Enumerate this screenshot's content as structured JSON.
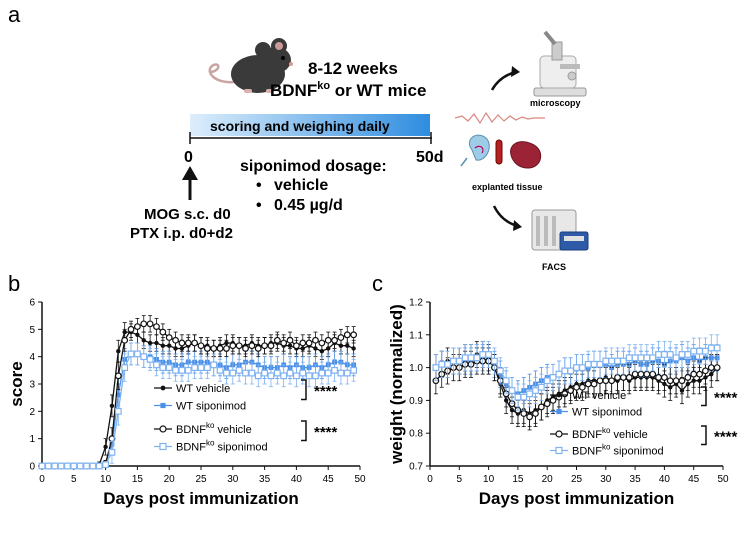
{
  "panel_labels": {
    "a": "a",
    "b": "b",
    "c": "c"
  },
  "schematic": {
    "age_line1": "8-12 weeks",
    "age_line2_prefix": "BDNF",
    "age_line2_sup": "ko",
    "age_line2_suffix": " or WT mice",
    "bar_label": "scoring and weighing daily",
    "start_label": "0",
    "end_label": "50d",
    "dosage_title": "siponimod dosage:",
    "dosage_items": [
      "vehicle",
      "0.45 µg/d"
    ],
    "induction_line1": "MOG s.c. d0",
    "induction_line2": "PTX i.p. d0+d2",
    "out_microscopy": "microscopy",
    "out_tissue": "explanted tissue",
    "out_facs": "FACS"
  },
  "colors": {
    "wt_vehicle": "#111111",
    "wt_siponimod": "#4a90e8",
    "ko_vehicle": "#111111",
    "ko_siponimod": "#7fb2f0",
    "bar_start": "#ddeefc",
    "bar_end": "#2f8ddf",
    "mouse": "#3a3a3a"
  },
  "chart_data": [
    {
      "type": "line",
      "id": "score",
      "xlabel": "Days post immunization",
      "ylabel": "score",
      "xlim": [
        0,
        50
      ],
      "ylim": [
        0,
        6
      ],
      "xticks": [
        0,
        5,
        10,
        15,
        20,
        25,
        30,
        35,
        40,
        45,
        50
      ],
      "yticks": [
        0,
        1,
        2,
        3,
        4,
        5,
        6
      ],
      "significance": [
        "****",
        "****"
      ],
      "legend": [
        {
          "prefix": "WT vehicle",
          "sup": "",
          "suffix": ""
        },
        {
          "prefix": "WT siponimod",
          "sup": "",
          "suffix": ""
        },
        {
          "prefix": "BDNF",
          "sup": "ko",
          "suffix": " vehicle"
        },
        {
          "prefix": "BDNF",
          "sup": "ko",
          "suffix": " siponimod"
        }
      ],
      "x": [
        0,
        1,
        2,
        3,
        4,
        5,
        6,
        7,
        8,
        9,
        10,
        11,
        12,
        13,
        14,
        15,
        16,
        17,
        18,
        19,
        20,
        21,
        22,
        23,
        24,
        25,
        26,
        27,
        28,
        29,
        30,
        31,
        32,
        33,
        34,
        35,
        36,
        37,
        38,
        39,
        40,
        41,
        42,
        43,
        44,
        45,
        46,
        47,
        48,
        49
      ],
      "series": [
        {
          "name": "WT vehicle",
          "color": "#111111",
          "marker": "dot",
          "values": [
            0,
            0,
            0,
            0,
            0,
            0,
            0,
            0,
            0,
            0.05,
            0.7,
            2.2,
            4.2,
            4.9,
            4.9,
            4.8,
            4.6,
            4.5,
            4.5,
            4.4,
            4.4,
            4.3,
            4.3,
            4.4,
            4.5,
            4.4,
            4.4,
            4.3,
            4.4,
            4.5,
            4.5,
            4.4,
            4.4,
            4.5,
            4.4,
            4.4,
            4.5,
            4.5,
            4.4,
            4.4,
            4.3,
            4.3,
            4.4,
            4.3,
            4.2,
            4.3,
            4.5,
            4.4,
            4.4,
            4.3
          ],
          "err": [
            0,
            0,
            0,
            0,
            0,
            0,
            0,
            0,
            0,
            0.1,
            0.3,
            0.4,
            0.4,
            0.35,
            0.3,
            0.3,
            0.3,
            0.3,
            0.3,
            0.3,
            0.3,
            0.3,
            0.3,
            0.3,
            0.3,
            0.3,
            0.3,
            0.3,
            0.3,
            0.3,
            0.3,
            0.3,
            0.3,
            0.3,
            0.3,
            0.3,
            0.3,
            0.3,
            0.3,
            0.3,
            0.3,
            0.3,
            0.3,
            0.3,
            0.3,
            0.3,
            0.3,
            0.3,
            0.3,
            0.3
          ]
        },
        {
          "name": "WT siponimod",
          "color": "#4a90e8",
          "marker": "square",
          "values": [
            0,
            0,
            0,
            0,
            0,
            0,
            0,
            0,
            0,
            0,
            0.1,
            0.8,
            2.6,
            3.9,
            4.1,
            4.1,
            4.0,
            4.0,
            3.9,
            3.8,
            3.8,
            3.7,
            3.7,
            3.8,
            3.8,
            3.8,
            3.8,
            3.7,
            3.7,
            3.6,
            3.7,
            3.7,
            3.8,
            3.8,
            3.7,
            3.6,
            3.6,
            3.6,
            3.7,
            3.6,
            3.7,
            3.6,
            3.6,
            3.7,
            3.6,
            3.7,
            3.8,
            3.8,
            3.7,
            3.7
          ],
          "err": [
            0,
            0,
            0,
            0,
            0,
            0,
            0,
            0,
            0,
            0,
            0.1,
            0.3,
            0.4,
            0.4,
            0.4,
            0.4,
            0.4,
            0.4,
            0.4,
            0.4,
            0.4,
            0.4,
            0.4,
            0.4,
            0.4,
            0.4,
            0.4,
            0.4,
            0.4,
            0.4,
            0.4,
            0.4,
            0.4,
            0.4,
            0.4,
            0.4,
            0.4,
            0.4,
            0.4,
            0.4,
            0.4,
            0.4,
            0.4,
            0.4,
            0.4,
            0.4,
            0.4,
            0.4,
            0.4,
            0.4
          ]
        },
        {
          "name": "BDNFko vehicle",
          "color": "#111111",
          "marker": "circle",
          "values": [
            0,
            0,
            0,
            0,
            0,
            0,
            0,
            0,
            0,
            0,
            0.1,
            1.0,
            3.3,
            4.6,
            5.0,
            5.1,
            5.2,
            5.2,
            5.1,
            4.9,
            4.7,
            4.6,
            4.5,
            4.5,
            4.5,
            4.4,
            4.3,
            4.3,
            4.3,
            4.3,
            4.4,
            4.4,
            4.3,
            4.4,
            4.3,
            4.4,
            4.4,
            4.6,
            4.5,
            4.6,
            4.4,
            4.5,
            4.5,
            4.6,
            4.5,
            4.6,
            4.6,
            4.7,
            4.8,
            4.8
          ],
          "err": [
            0,
            0,
            0,
            0,
            0,
            0,
            0,
            0,
            0,
            0,
            0.1,
            0.4,
            0.5,
            0.4,
            0.3,
            0.3,
            0.3,
            0.3,
            0.3,
            0.3,
            0.3,
            0.3,
            0.3,
            0.3,
            0.3,
            0.3,
            0.3,
            0.3,
            0.3,
            0.3,
            0.3,
            0.3,
            0.3,
            0.3,
            0.3,
            0.3,
            0.3,
            0.3,
            0.3,
            0.3,
            0.3,
            0.3,
            0.3,
            0.3,
            0.3,
            0.3,
            0.3,
            0.3,
            0.3,
            0.3
          ]
        },
        {
          "name": "BDNFko siponimod",
          "color": "#7fb2f0",
          "marker": "opensquare",
          "values": [
            0,
            0,
            0,
            0,
            0,
            0,
            0,
            0,
            0,
            0,
            0.05,
            0.5,
            2.0,
            3.6,
            4.1,
            4.1,
            4.0,
            3.9,
            3.7,
            3.6,
            3.6,
            3.5,
            3.5,
            3.5,
            3.6,
            3.6,
            3.6,
            3.7,
            3.5,
            3.4,
            3.4,
            3.5,
            3.4,
            3.4,
            3.3,
            3.4,
            3.3,
            3.4,
            3.3,
            3.4,
            3.3,
            3.4,
            3.3,
            3.3,
            3.4,
            3.4,
            3.5,
            3.4,
            3.4,
            3.5
          ],
          "err": [
            0,
            0,
            0,
            0,
            0,
            0,
            0,
            0,
            0,
            0,
            0.1,
            0.4,
            0.5,
            0.5,
            0.4,
            0.4,
            0.4,
            0.4,
            0.4,
            0.4,
            0.4,
            0.4,
            0.4,
            0.4,
            0.4,
            0.4,
            0.4,
            0.4,
            0.4,
            0.4,
            0.4,
            0.4,
            0.4,
            0.4,
            0.4,
            0.4,
            0.4,
            0.4,
            0.4,
            0.4,
            0.4,
            0.4,
            0.4,
            0.4,
            0.4,
            0.4,
            0.4,
            0.4,
            0.4,
            0.4
          ]
        }
      ]
    },
    {
      "type": "line",
      "id": "weight",
      "xlabel": "Days post immunization",
      "ylabel": "weight (normalized)",
      "xlim": [
        0,
        50
      ],
      "ylim": [
        0.7,
        1.2
      ],
      "xticks": [
        0,
        5,
        10,
        15,
        20,
        25,
        30,
        35,
        40,
        45,
        50
      ],
      "yticks": [
        "0.7",
        "0.8",
        "0.9",
        "1.0",
        "1.1",
        "1.2"
      ],
      "significance": [
        "****",
        "****"
      ],
      "legend": [
        {
          "prefix": "WT vehicle",
          "sup": "",
          "suffix": ""
        },
        {
          "prefix": "WT siponimod",
          "sup": "",
          "suffix": ""
        },
        {
          "prefix": "BDNF",
          "sup": "ko",
          "suffix": " vehicle"
        },
        {
          "prefix": "BDNF",
          "sup": "ko",
          "suffix": " siponimod"
        }
      ],
      "x": [
        1,
        2,
        3,
        4,
        5,
        6,
        7,
        8,
        9,
        10,
        11,
        12,
        13,
        14,
        15,
        16,
        17,
        18,
        19,
        20,
        21,
        22,
        23,
        24,
        25,
        26,
        27,
        28,
        29,
        30,
        31,
        32,
        33,
        34,
        35,
        36,
        37,
        38,
        39,
        40,
        41,
        42,
        43,
        44,
        45,
        46,
        47,
        48,
        49
      ],
      "series": [
        {
          "name": "WT vehicle",
          "color": "#111111",
          "marker": "dot",
          "values": [
            1.0,
            1.01,
            1.02,
            1.02,
            1.02,
            1.03,
            1.03,
            1.04,
            1.04,
            1.03,
            1.0,
            0.95,
            0.9,
            0.87,
            0.86,
            0.87,
            0.86,
            0.87,
            0.88,
            0.9,
            0.91,
            0.92,
            0.93,
            0.94,
            0.95,
            0.95,
            0.96,
            0.96,
            0.96,
            0.97,
            0.96,
            0.96,
            0.97,
            0.96,
            0.97,
            0.97,
            0.97,
            0.97,
            0.96,
            0.95,
            0.94,
            0.95,
            0.93,
            0.95,
            0.96,
            0.96,
            0.97,
            0.98,
            1.0
          ],
          "err": [
            0.04,
            0.04,
            0.04,
            0.04,
            0.04,
            0.04,
            0.04,
            0.04,
            0.04,
            0.04,
            0.04,
            0.04,
            0.04,
            0.04,
            0.04,
            0.04,
            0.04,
            0.04,
            0.04,
            0.04,
            0.04,
            0.04,
            0.04,
            0.04,
            0.04,
            0.04,
            0.04,
            0.04,
            0.04,
            0.04,
            0.04,
            0.04,
            0.04,
            0.04,
            0.04,
            0.04,
            0.04,
            0.04,
            0.04,
            0.04,
            0.04,
            0.04,
            0.04,
            0.04,
            0.04,
            0.04,
            0.04,
            0.04,
            0.04
          ]
        },
        {
          "name": "WT siponimod",
          "color": "#4a90e8",
          "marker": "square",
          "values": [
            1.0,
            1.01,
            1.01,
            1.02,
            1.02,
            1.02,
            1.02,
            1.03,
            1.03,
            1.02,
            1.01,
            0.98,
            0.95,
            0.93,
            0.92,
            0.93,
            0.94,
            0.95,
            0.96,
            0.97,
            0.97,
            0.98,
            0.99,
            0.99,
            1.0,
            1.0,
            1.0,
            1.01,
            1.01,
            1.01,
            1.0,
            1.01,
            1.01,
            1.01,
            1.02,
            1.01,
            1.01,
            1.02,
            1.02,
            1.01,
            1.02,
            1.02,
            1.03,
            1.02,
            1.03,
            1.02,
            1.03,
            1.03,
            1.03
          ],
          "err": [
            0.04,
            0.04,
            0.04,
            0.04,
            0.04,
            0.04,
            0.04,
            0.04,
            0.04,
            0.04,
            0.04,
            0.04,
            0.04,
            0.04,
            0.04,
            0.04,
            0.04,
            0.04,
            0.04,
            0.04,
            0.04,
            0.04,
            0.04,
            0.04,
            0.04,
            0.04,
            0.04,
            0.04,
            0.04,
            0.04,
            0.04,
            0.04,
            0.04,
            0.04,
            0.04,
            0.04,
            0.04,
            0.04,
            0.04,
            0.04,
            0.04,
            0.04,
            0.04,
            0.04,
            0.04,
            0.04,
            0.04,
            0.04,
            0.04
          ]
        },
        {
          "name": "BDNFko vehicle",
          "color": "#111111",
          "marker": "circle",
          "values": [
            0.96,
            0.98,
            0.99,
            1.0,
            1.0,
            1.01,
            1.01,
            1.02,
            1.02,
            1.02,
            1.0,
            0.96,
            0.92,
            0.89,
            0.87,
            0.86,
            0.85,
            0.86,
            0.88,
            0.89,
            0.9,
            0.91,
            0.92,
            0.93,
            0.94,
            0.94,
            0.95,
            0.95,
            0.96,
            0.96,
            0.96,
            0.97,
            0.97,
            0.97,
            0.98,
            0.98,
            0.98,
            0.98,
            0.97,
            0.97,
            0.96,
            0.96,
            0.96,
            0.97,
            0.98,
            0.98,
            0.99,
            1.0,
            1.0
          ],
          "err": [
            0.04,
            0.04,
            0.04,
            0.04,
            0.04,
            0.04,
            0.04,
            0.04,
            0.04,
            0.04,
            0.04,
            0.04,
            0.04,
            0.04,
            0.04,
            0.04,
            0.04,
            0.04,
            0.04,
            0.04,
            0.04,
            0.04,
            0.04,
            0.04,
            0.04,
            0.04,
            0.04,
            0.04,
            0.04,
            0.04,
            0.04,
            0.04,
            0.04,
            0.04,
            0.04,
            0.04,
            0.04,
            0.04,
            0.04,
            0.04,
            0.04,
            0.04,
            0.04,
            0.04,
            0.04,
            0.04,
            0.04,
            0.04,
            0.04
          ]
        },
        {
          "name": "BDNFko siponimod",
          "color": "#7fb2f0",
          "marker": "opensquare",
          "values": [
            1.0,
            1.01,
            1.01,
            1.02,
            1.02,
            1.03,
            1.03,
            1.03,
            1.04,
            1.04,
            1.02,
            0.99,
            0.96,
            0.93,
            0.91,
            0.91,
            0.92,
            0.93,
            0.94,
            0.96,
            0.97,
            0.98,
            0.99,
            0.99,
            1.0,
            1.0,
            1.01,
            1.01,
            1.01,
            1.02,
            1.02,
            1.02,
            1.02,
            1.03,
            1.03,
            1.03,
            1.03,
            1.03,
            1.04,
            1.04,
            1.04,
            1.03,
            1.04,
            1.04,
            1.05,
            1.05,
            1.05,
            1.06,
            1.06
          ],
          "err": [
            0.04,
            0.04,
            0.04,
            0.04,
            0.04,
            0.04,
            0.04,
            0.04,
            0.04,
            0.04,
            0.04,
            0.04,
            0.04,
            0.04,
            0.04,
            0.04,
            0.04,
            0.04,
            0.04,
            0.04,
            0.04,
            0.04,
            0.04,
            0.04,
            0.04,
            0.04,
            0.04,
            0.04,
            0.04,
            0.04,
            0.04,
            0.04,
            0.04,
            0.04,
            0.04,
            0.04,
            0.04,
            0.04,
            0.04,
            0.04,
            0.04,
            0.04,
            0.04,
            0.04,
            0.04,
            0.04,
            0.04,
            0.04,
            0.04
          ]
        }
      ]
    }
  ]
}
